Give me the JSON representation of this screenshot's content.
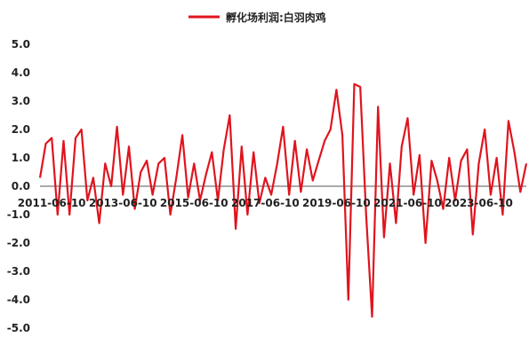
{
  "chart_data": {
    "type": "line",
    "legend": {
      "placement": "top-center"
    },
    "series": [
      {
        "name": "孵化场利润:白羽肉鸡",
        "color": "#e0141e",
        "x": [
          "2011-02-10",
          "2011-04-10",
          "2011-06-10",
          "2011-08-10",
          "2011-10-10",
          "2011-12-10",
          "2012-02-10",
          "2012-04-10",
          "2012-06-10",
          "2012-08-10",
          "2012-10-10",
          "2012-12-10",
          "2013-02-10",
          "2013-04-10",
          "2013-06-10",
          "2013-08-10",
          "2013-10-10",
          "2013-12-10",
          "2014-02-10",
          "2014-04-10",
          "2014-06-10",
          "2014-08-10",
          "2014-10-10",
          "2014-12-10",
          "2015-02-10",
          "2015-04-10",
          "2015-06-10",
          "2015-08-10",
          "2015-10-10",
          "2015-12-10",
          "2016-02-10",
          "2016-04-10",
          "2016-06-10",
          "2016-08-10",
          "2016-10-10",
          "2016-12-10",
          "2017-02-10",
          "2017-04-10",
          "2017-06-10",
          "2017-08-10",
          "2017-10-10",
          "2017-12-10",
          "2018-02-10",
          "2018-04-10",
          "2018-06-10",
          "2018-08-10",
          "2018-10-10",
          "2018-12-10",
          "2019-02-10",
          "2019-04-10",
          "2019-06-10",
          "2019-08-10",
          "2019-10-10",
          "2019-12-10",
          "2020-02-10",
          "2020-04-10",
          "2020-06-10",
          "2020-08-10",
          "2020-10-10",
          "2020-12-10",
          "2021-02-10",
          "2021-04-10",
          "2021-06-10",
          "2021-08-10",
          "2021-10-10",
          "2021-12-10",
          "2022-02-10",
          "2022-04-10",
          "2022-06-10",
          "2022-08-10",
          "2022-10-10",
          "2022-12-10",
          "2023-02-10",
          "2023-04-10",
          "2023-06-10",
          "2023-08-10",
          "2023-10-10",
          "2023-12-10",
          "2024-02-10",
          "2024-04-10",
          "2024-06-10",
          "2024-08-10",
          "2024-10-10"
        ],
        "values": [
          0.3,
          1.5,
          1.7,
          -1.0,
          1.6,
          -1.0,
          1.7,
          2.0,
          -0.5,
          0.3,
          -1.3,
          0.8,
          0.0,
          2.1,
          -0.3,
          1.4,
          -0.8,
          0.5,
          0.9,
          -0.3,
          0.8,
          1.0,
          -1.0,
          0.3,
          1.8,
          -0.4,
          0.8,
          -0.5,
          0.4,
          1.2,
          -0.5,
          1.3,
          2.5,
          -1.5,
          1.4,
          -1.0,
          1.2,
          -0.6,
          0.3,
          -0.3,
          0.8,
          2.1,
          -0.3,
          1.6,
          -0.2,
          1.3,
          0.2,
          0.9,
          1.6,
          2.0,
          3.4,
          1.8,
          -4.0,
          3.6,
          3.5,
          -1.0,
          -4.6,
          2.8,
          -1.8,
          0.8,
          -1.3,
          1.4,
          2.4,
          -0.3,
          1.1,
          -2.0,
          0.9,
          0.2,
          -0.8,
          1.0,
          -0.5,
          0.9,
          1.3,
          -1.7,
          0.8,
          2.0,
          -0.3,
          1.0,
          -1.0,
          2.3,
          1.2,
          -0.2,
          0.8
        ]
      }
    ],
    "y_ticks": [
      "5.0",
      "4.0",
      "3.0",
      "2.0",
      "1.0",
      "0.0",
      "-1.0",
      "-2.0",
      "-3.0",
      "-4.0",
      "-5.0"
    ],
    "x_ticks": [
      "2011-06-10",
      "2013-06-10",
      "2015-06-10",
      "2017-06-10",
      "2019-06-10",
      "2021-06-10",
      "2023-06-10"
    ],
    "ylim": [
      -5,
      5
    ],
    "xlim": [
      "2011-02-10",
      "2024-10-10"
    ],
    "grid": false
  }
}
